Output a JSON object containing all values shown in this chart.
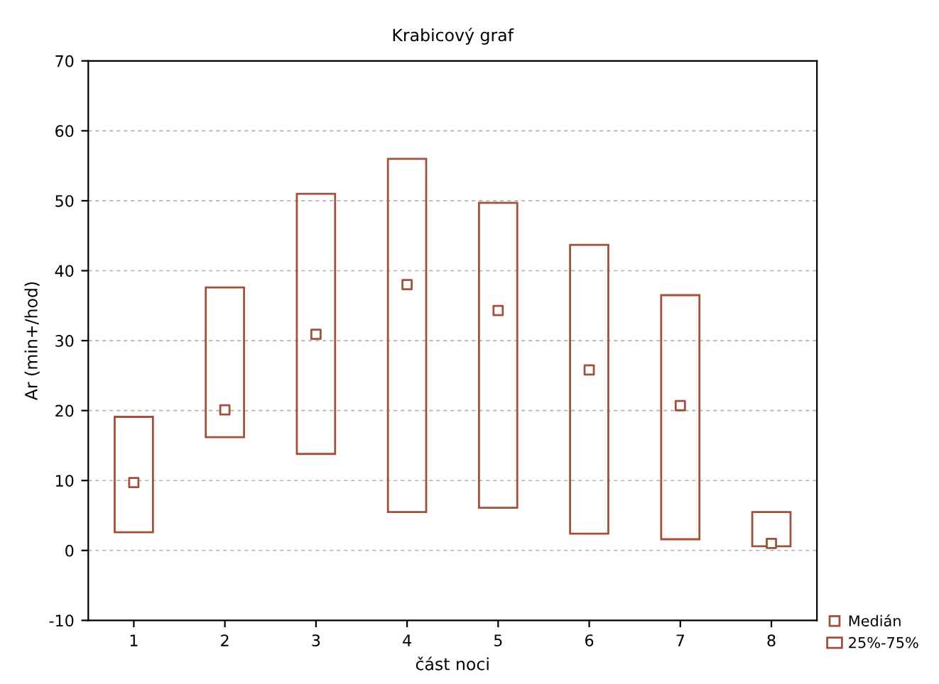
{
  "chart_data": {
    "type": "bar",
    "title": "Krabicový graf",
    "xlabel": "část noci",
    "ylabel": "Ar (min+/hod)",
    "categories": [
      "1",
      "2",
      "3",
      "4",
      "5",
      "6",
      "7",
      "8"
    ],
    "series": [
      {
        "name": "Medián",
        "type": "scatter",
        "color": "#a0503c",
        "marker": "square",
        "x": [
          "1",
          "2",
          "3",
          "4",
          "5",
          "6",
          "7",
          "8"
        ],
        "values": [
          9.7,
          20.1,
          30.9,
          38.0,
          34.3,
          25.8,
          20.7,
          1.0
        ]
      },
      {
        "name": "25%-75%",
        "color": "#a0503c",
        "base": [
          2.6,
          16.2,
          13.8,
          5.5,
          6.1,
          2.4,
          1.6,
          0.6
        ],
        "values": [
          16.5,
          21.4,
          37.2,
          50.5,
          43.6,
          41.3,
          34.9,
          4.9
        ]
      }
    ],
    "ylim": [
      -10,
      70
    ],
    "yticks": [
      -10,
      0,
      10,
      20,
      30,
      40,
      50,
      60,
      70
    ],
    "grid": "y",
    "legend": "bottom right"
  }
}
